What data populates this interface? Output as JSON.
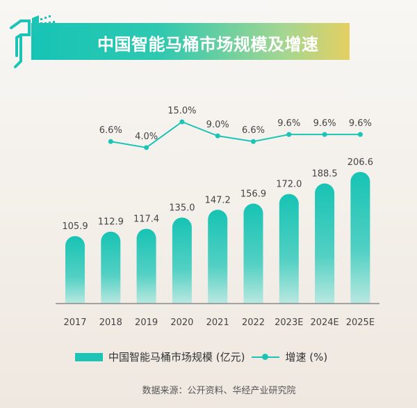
{
  "title": "中国智能马桶市场规模及增速",
  "source": "数据来源：公开资料、华经产业研究院",
  "colors": {
    "bar": "#1cc4b5",
    "line": "#1cc4b5",
    "banner_start": "#16c4b6",
    "banner_end": "#e4cf62"
  },
  "chart_data": {
    "type": "bar+line",
    "title": "中国智能马桶市场规模及增速",
    "categories": [
      "2017",
      "2018",
      "2019",
      "2020",
      "2021",
      "2022",
      "2023E",
      "2024E",
      "2025E"
    ],
    "series": [
      {
        "name": "中国智能马桶市场规模 (亿元)",
        "type": "bar",
        "values": [
          105.9,
          112.9,
          117.4,
          135.0,
          147.2,
          156.9,
          172.0,
          188.5,
          206.6
        ],
        "labels": [
          "105.9",
          "112.9",
          "117.4",
          "135.0",
          "147.2",
          "156.9",
          "172.0",
          "188.5",
          "206.6"
        ]
      },
      {
        "name": "增速 (%)",
        "type": "line",
        "values": [
          null,
          6.6,
          4.0,
          15.0,
          9.0,
          6.6,
          9.6,
          9.6,
          9.6
        ],
        "labels": [
          "",
          "6.6%",
          "4.0%",
          "15.0%",
          "9.0%",
          "6.6%",
          "9.6%",
          "9.6%",
          "9.6%"
        ]
      }
    ],
    "legend": "bottom",
    "grid": false
  }
}
